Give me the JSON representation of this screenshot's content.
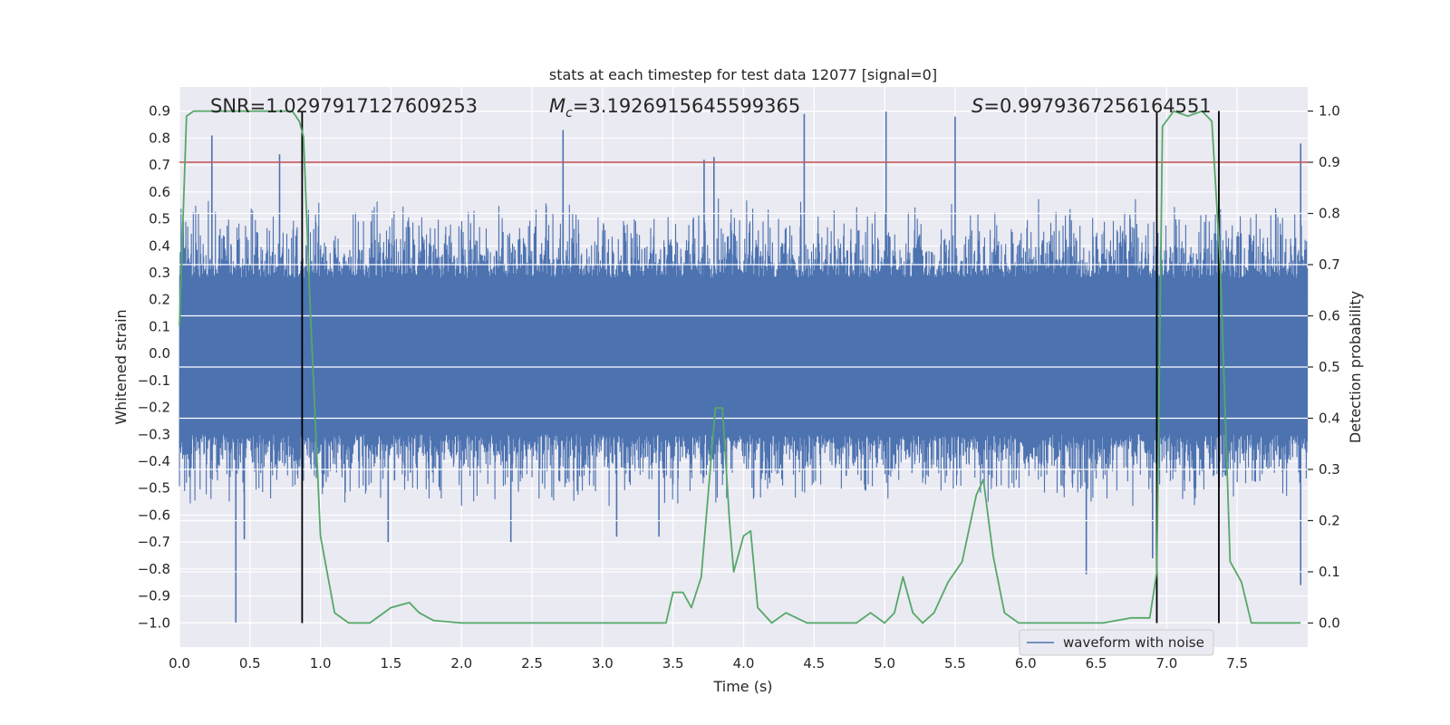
{
  "chart_data": {
    "type": "line",
    "title": "stats at each timestep for test data 12077 [signal=0]",
    "xlabel": "Time (s)",
    "ylabel": "Whitened strain",
    "y2label": "Detection probability",
    "xlim": [
      0.0,
      8.0
    ],
    "ylim": [
      -1.09,
      0.99
    ],
    "y2lim": [
      -0.047,
      1.047
    ],
    "xticks": [
      0.0,
      0.5,
      1.0,
      1.5,
      2.0,
      2.5,
      3.0,
      3.5,
      4.0,
      4.5,
      5.0,
      5.5,
      6.0,
      6.5,
      7.0,
      7.5
    ],
    "xtick_labels": [
      "0.0",
      "0.5",
      "1.0",
      "1.5",
      "2.0",
      "2.5",
      "3.0",
      "3.5",
      "4.0",
      "4.5",
      "5.0",
      "5.5",
      "6.0",
      "6.5",
      "7.0",
      "7.5"
    ],
    "yticks": [
      0.9,
      0.8,
      0.7,
      0.6,
      0.5,
      0.4,
      0.3,
      0.2,
      0.1,
      0.0,
      -0.1,
      -0.2,
      -0.3,
      -0.4,
      -0.5,
      -0.6,
      -0.7,
      -0.8,
      -0.9,
      -1.0
    ],
    "ytick_labels": [
      "0.9",
      "0.8",
      "0.7",
      "0.6",
      "0.5",
      "0.4",
      "0.3",
      "0.2",
      "0.1",
      "0.0",
      "−0.1",
      "−0.2",
      "−0.3",
      "−0.4",
      "−0.5",
      "−0.6",
      "−0.7",
      "−0.8",
      "−0.9",
      "−1.0"
    ],
    "y2ticks": [
      1.0,
      0.9,
      0.8,
      0.7,
      0.6,
      0.5,
      0.4,
      0.3,
      0.2,
      0.1,
      0.0
    ],
    "y2tick_labels": [
      "1.0",
      "0.9",
      "0.8",
      "0.7",
      "0.6",
      "0.5",
      "0.4",
      "0.3",
      "0.2",
      "0.1",
      "0.0"
    ],
    "annotations": {
      "snr": "SNR=1.0297917127609253",
      "mc_label": "M",
      "mc_sub": "c",
      "mc_value": "=3.1926915645599365",
      "s_label": "S",
      "s_value": "=0.9979367256164551"
    },
    "legend": {
      "label": "waveform with noise",
      "position": "lower-right"
    },
    "threshold": {
      "y2": 0.9,
      "color": "#c44e52"
    },
    "vlines": [
      0.87,
      6.93,
      7.37
    ],
    "waveform": {
      "name": "waveform with noise",
      "color": "#4c72b0",
      "duration_s": 8.0,
      "core_band": [
        -0.3,
        0.28
      ],
      "spikes": [
        {
          "t": 0.23,
          "y": 0.81
        },
        {
          "t": 0.4,
          "y": -1.0
        },
        {
          "t": 0.71,
          "y": 0.74
        },
        {
          "t": 0.46,
          "y": -0.69
        },
        {
          "t": 1.0,
          "y": 0.27
        },
        {
          "t": 1.48,
          "y": -0.7
        },
        {
          "t": 2.35,
          "y": -0.7
        },
        {
          "t": 2.72,
          "y": 0.83
        },
        {
          "t": 3.1,
          "y": -0.68
        },
        {
          "t": 3.4,
          "y": -0.68
        },
        {
          "t": 3.72,
          "y": 0.72
        },
        {
          "t": 3.79,
          "y": 0.73
        },
        {
          "t": 4.43,
          "y": 0.89
        },
        {
          "t": 5.01,
          "y": 0.9
        },
        {
          "t": 5.5,
          "y": 0.88
        },
        {
          "t": 6.43,
          "y": -0.82
        },
        {
          "t": 6.9,
          "y": -0.76
        },
        {
          "t": 7.95,
          "y": 0.78
        },
        {
          "t": 7.95,
          "y": -0.86
        }
      ]
    },
    "detection_probability": {
      "color": "#55a868",
      "x": [
        0.0,
        0.05,
        0.1,
        0.8,
        0.85,
        0.88,
        0.93,
        1.0,
        1.1,
        1.2,
        1.35,
        1.5,
        1.63,
        1.7,
        1.8,
        2.0,
        2.5,
        3.0,
        3.3,
        3.45,
        3.5,
        3.57,
        3.63,
        3.7,
        3.8,
        3.85,
        3.9,
        3.93,
        4.0,
        4.05,
        4.1,
        4.2,
        4.3,
        4.45,
        4.6,
        4.8,
        4.9,
        5.0,
        5.07,
        5.13,
        5.2,
        5.27,
        5.35,
        5.45,
        5.55,
        5.65,
        5.7,
        5.77,
        5.85,
        5.95,
        6.2,
        6.55,
        6.75,
        6.88,
        6.93,
        6.97,
        7.05,
        7.15,
        7.25,
        7.32,
        7.38,
        7.45,
        7.53,
        7.6,
        7.7,
        7.95
      ],
      "y": [
        0.58,
        0.99,
        1.0,
        1.0,
        0.98,
        0.95,
        0.6,
        0.17,
        0.02,
        0.0,
        0.0,
        0.03,
        0.04,
        0.02,
        0.005,
        0.0,
        0.0,
        0.0,
        0.0,
        0.0,
        0.06,
        0.06,
        0.03,
        0.09,
        0.42,
        0.42,
        0.2,
        0.1,
        0.17,
        0.18,
        0.03,
        0.0,
        0.02,
        0.0,
        0.0,
        0.0,
        0.02,
        0.0,
        0.02,
        0.09,
        0.02,
        0.0,
        0.02,
        0.08,
        0.12,
        0.25,
        0.28,
        0.13,
        0.02,
        0.0,
        0.0,
        0.0,
        0.01,
        0.01,
        0.1,
        0.97,
        1.0,
        0.99,
        1.0,
        0.98,
        0.7,
        0.12,
        0.08,
        0.0,
        0.0,
        0.0
      ]
    }
  }
}
